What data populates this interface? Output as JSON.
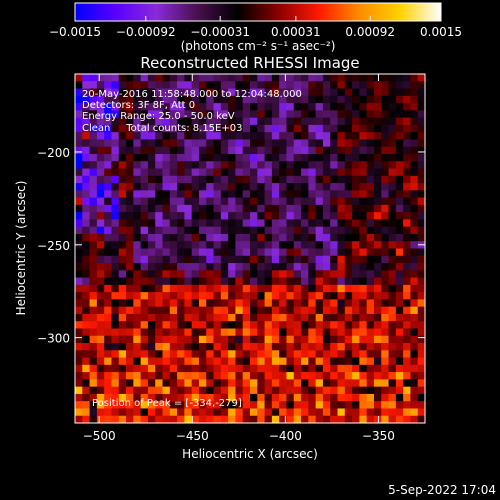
{
  "chart_data": {
    "type": "heatmap",
    "title": "Reconstructed RHESSI Image",
    "xlabel": "Heliocentric X (arcsec)",
    "ylabel": "Heliocentric Y (arcsec)",
    "xlim": [
      -513,
      -325
    ],
    "ylim": [
      -346,
      -158
    ],
    "x_ticks": [
      -500,
      -450,
      -400,
      -350
    ],
    "y_ticks": [
      -200,
      -250,
      -300
    ],
    "colorbar": {
      "label": "(photons cm⁻² s⁻¹ asec⁻²)",
      "range": [
        -0.0015,
        0.0015
      ],
      "ticks": [
        "−0.0015",
        "−0.00092",
        "−0.00031",
        "0.00031",
        "0.00092",
        "0.0015"
      ],
      "colors": [
        "#0000ff",
        "#5a00ff",
        "#8a2ad8",
        "#4a1050",
        "#000000",
        "#8a0000",
        "#ff1a00",
        "#ff8c00",
        "#ffd200",
        "#ffffff"
      ]
    },
    "annotations": {
      "time": "20-May-2016 11:58:48.000 to 12:04:48.000",
      "detectors": "Detectors: 3F 8F, Att 0",
      "energy": "Energy Range: 25.0 - 50.0 keV",
      "clean": "Clean     Total counts: 8.15E+03",
      "peak": "Position of Peak = [-334,-279]"
    },
    "grid": false
  },
  "footer": {
    "date": "5-Sep-2022 17:04"
  }
}
